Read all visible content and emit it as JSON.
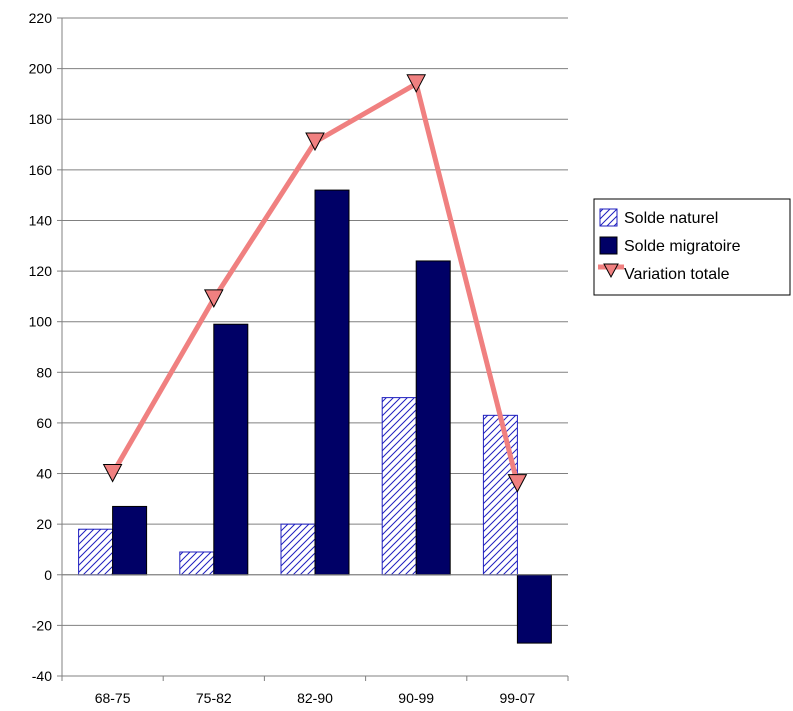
{
  "chart_data": {
    "type": "bar",
    "categories": [
      "68-75",
      "75-82",
      "82-90",
      "90-99",
      "99-07"
    ],
    "ylim": [
      -40,
      220
    ],
    "yticks": [
      -40,
      -20,
      0,
      20,
      40,
      60,
      80,
      100,
      120,
      140,
      160,
      180,
      200,
      220
    ],
    "grid": true,
    "legend_position": "right",
    "series": [
      {
        "name": "Solde naturel",
        "kind": "bar",
        "values": [
          18,
          9,
          20,
          70,
          63
        ],
        "color": "#1f1fbf",
        "pattern": "hatch"
      },
      {
        "name": "Solde migratoire",
        "kind": "bar",
        "values": [
          27,
          99,
          152,
          124,
          -27
        ],
        "color": "#000066"
      },
      {
        "name": "Variation totale",
        "kind": "line",
        "values": [
          40,
          109,
          171,
          194,
          36
        ],
        "color": "#f08080",
        "marker": "triangle-down"
      }
    ]
  }
}
